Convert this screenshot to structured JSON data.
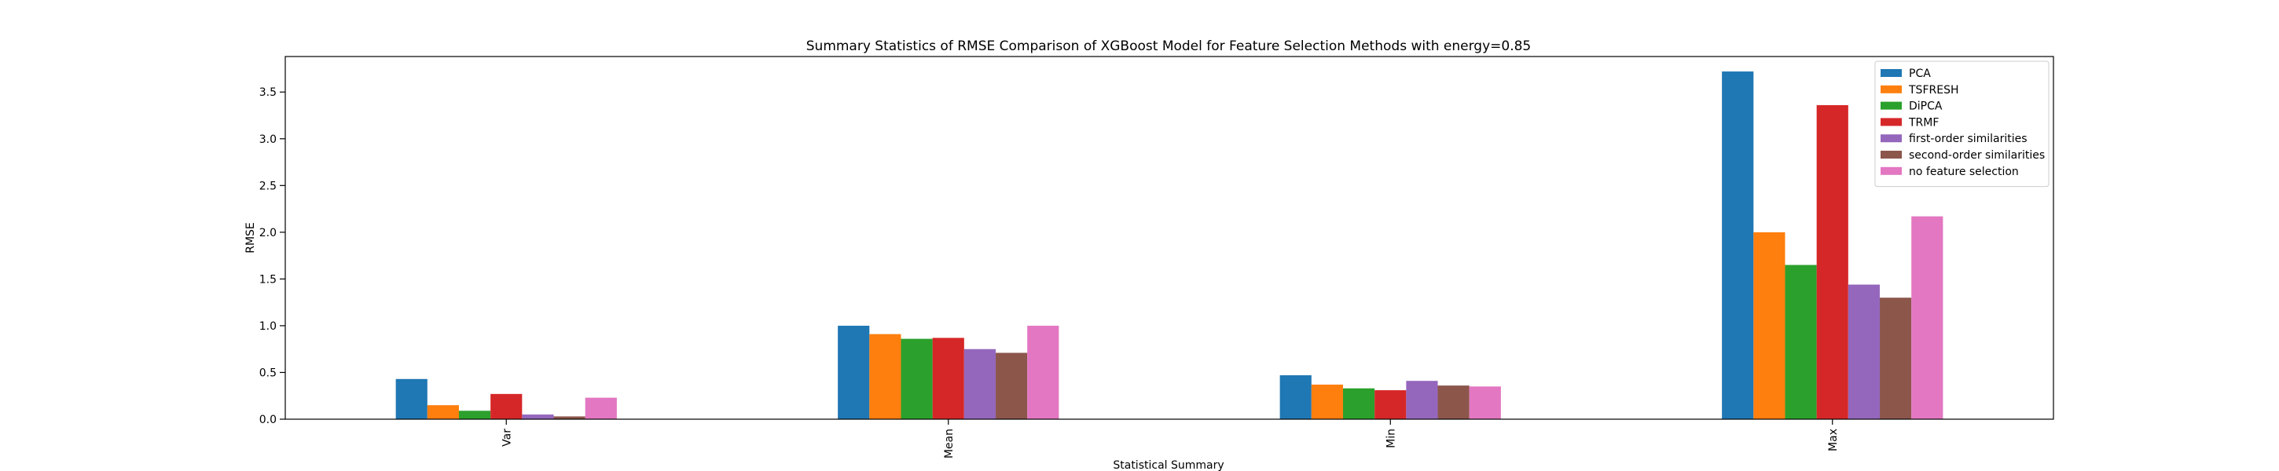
{
  "chart_data": {
    "type": "bar",
    "title": "Summary Statistics of RMSE Comparison of XGBoost Model for Feature Selection Methods with energy=0.85",
    "xlabel": "Statistical Summary",
    "ylabel": "RMSE",
    "categories": [
      "Var",
      "Mean",
      "Min",
      "Max"
    ],
    "ylim": [
      0,
      3.88
    ],
    "yticks": [
      "0.0",
      "0.5",
      "1.0",
      "1.5",
      "2.0",
      "2.5",
      "3.0",
      "3.5"
    ],
    "grid": false,
    "legend_position": "top-right",
    "series": [
      {
        "name": "PCA",
        "color": "#1f77b4",
        "values": [
          0.43,
          1.0,
          0.47,
          3.72
        ]
      },
      {
        "name": "TSFRESH",
        "color": "#ff7f0e",
        "values": [
          0.15,
          0.91,
          0.37,
          2.0
        ]
      },
      {
        "name": "DiPCA",
        "color": "#2ca02c",
        "values": [
          0.09,
          0.86,
          0.33,
          1.65
        ]
      },
      {
        "name": "TRMF",
        "color": "#d62728",
        "values": [
          0.27,
          0.87,
          0.31,
          3.36
        ]
      },
      {
        "name": "first-order similarities",
        "color": "#9467bd",
        "values": [
          0.05,
          0.75,
          0.41,
          1.44
        ]
      },
      {
        "name": "second-order similarities",
        "color": "#8c564b",
        "values": [
          0.03,
          0.71,
          0.36,
          1.3
        ]
      },
      {
        "name": "no feature selection",
        "color": "#e377c2",
        "values": [
          0.23,
          1.0,
          0.35,
          2.17
        ]
      }
    ]
  }
}
